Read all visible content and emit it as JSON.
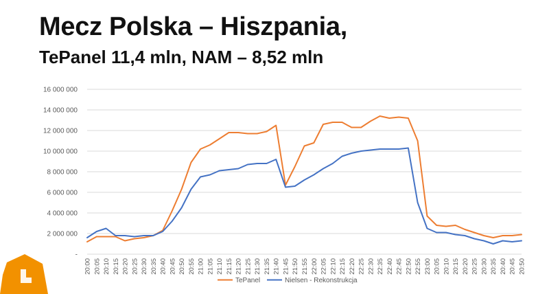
{
  "header": {
    "title": "Mecz Polska – Hiszpania,",
    "subtitle": "TePanel 11,4 mln, NAM – 8,52 mln"
  },
  "colors": {
    "tepanel": "#ED7D31",
    "nielsen": "#4472C4",
    "grid": "#D9D9D9",
    "logo": "#F29100"
  },
  "logo": {
    "icon": "tepanel-logo-icon"
  },
  "chart_data": {
    "type": "line",
    "ylim": [
      0,
      16000000
    ],
    "y_ticks": [
      0,
      2000000,
      4000000,
      6000000,
      8000000,
      10000000,
      12000000,
      14000000,
      16000000
    ],
    "y_tick_labels": [
      "-",
      "2 000 000",
      "4 000 000",
      "6 000 000",
      "8 000 000",
      "10 000 000",
      "12 000 000",
      "14 000 000",
      "16 000 000"
    ],
    "x_tick_labels": [
      "20:00",
      "20:05",
      "20:10",
      "20:15",
      "20:20",
      "20:25",
      "20:30",
      "20:35",
      "20:40",
      "20:45",
      "20:50",
      "20:55",
      "21:00",
      "21:05",
      "21:10",
      "21:15",
      "21:20",
      "21:25",
      "21:30",
      "21:35",
      "21:40",
      "21:45",
      "21:50",
      "21:55",
      "22:00",
      "22:05",
      "22:10",
      "22:15",
      "22:20",
      "22:25",
      "22:30",
      "22:35",
      "22:40",
      "22:45",
      "22:50",
      "22:55",
      "23:00",
      "20:05",
      "20:10",
      "20:15",
      "20:20",
      "20:25",
      "20:30",
      "20:35",
      "20:40",
      "20:45",
      "20:50"
    ],
    "grid": "horizontal",
    "legend_position": "bottom",
    "series": [
      {
        "name": "TePanel",
        "values": [
          1200000,
          1700000,
          1700000,
          1700000,
          1300000,
          1500000,
          1600000,
          1800000,
          2300000,
          4200000,
          6300000,
          8900000,
          10200000,
          10600000,
          11200000,
          11800000,
          11800000,
          11700000,
          11700000,
          11900000,
          12500000,
          6700000,
          8500000,
          10500000,
          10800000,
          12600000,
          12800000,
          12800000,
          12300000,
          12300000,
          12900000,
          13400000,
          13200000,
          13300000,
          13200000,
          11000000,
          3700000,
          2800000,
          2700000,
          2800000,
          2400000,
          2100000,
          1800000,
          1600000,
          1800000,
          1800000,
          1900000
        ]
      },
      {
        "name": "Nielsen - Rekonstrukcja",
        "values": [
          1600000,
          2200000,
          2500000,
          1800000,
          1800000,
          1700000,
          1800000,
          1800000,
          2200000,
          3200000,
          4500000,
          6300000,
          7500000,
          7700000,
          8100000,
          8200000,
          8300000,
          8700000,
          8800000,
          8800000,
          9200000,
          6500000,
          6600000,
          7200000,
          7700000,
          8300000,
          8800000,
          9500000,
          9800000,
          10000000,
          10100000,
          10200000,
          10200000,
          10200000,
          10300000,
          5000000,
          2500000,
          2100000,
          2100000,
          1900000,
          1800000,
          1500000,
          1300000,
          1000000,
          1300000,
          1200000,
          1300000
        ]
      }
    ]
  }
}
